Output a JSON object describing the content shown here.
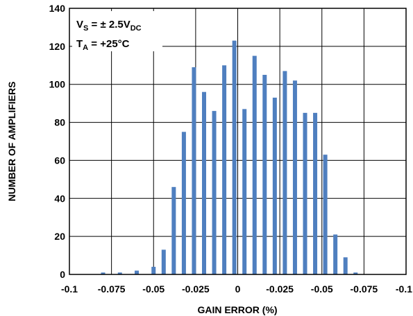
{
  "chart_data": {
    "type": "bar",
    "title": "",
    "xlabel": "GAIN ERROR (%)",
    "ylabel": "NUMBER OF AMPLIFIERS",
    "ylim": [
      0,
      140
    ],
    "yticks": [
      "0",
      "20",
      "40",
      "60",
      "80",
      "100",
      "120",
      "140"
    ],
    "xticks": [
      "-0.1",
      "-0.075",
      "-0.05",
      "-0.025",
      "0",
      "-0.025",
      "-0.05",
      "-0.075",
      "-0.1"
    ],
    "xrange": [
      -0.1,
      0.1
    ],
    "grid": true,
    "annotations": {
      "vs_main": "V",
      "vs_sub": "S",
      "vs_value": " = ± 2.5V",
      "vs_unit_sub": "DC",
      "ta_main": "T",
      "ta_sub": "A",
      "ta_value": " = +25°C"
    },
    "bar_color": "#4f7fbf",
    "bars": [
      {
        "x": -0.08,
        "value": 1
      },
      {
        "x": -0.07,
        "value": 1
      },
      {
        "x": -0.06,
        "value": 2
      },
      {
        "x": -0.05,
        "value": 4
      },
      {
        "x": -0.044,
        "value": 13
      },
      {
        "x": -0.038,
        "value": 46
      },
      {
        "x": -0.032,
        "value": 75
      },
      {
        "x": -0.026,
        "value": 109
      },
      {
        "x": -0.02,
        "value": 96
      },
      {
        "x": -0.014,
        "value": 86
      },
      {
        "x": -0.008,
        "value": 110
      },
      {
        "x": -0.002,
        "value": 123
      },
      {
        "x": 0.004,
        "value": 87
      },
      {
        "x": 0.01,
        "value": 115
      },
      {
        "x": 0.016,
        "value": 105
      },
      {
        "x": 0.022,
        "value": 93
      },
      {
        "x": 0.028,
        "value": 107
      },
      {
        "x": 0.034,
        "value": 102
      },
      {
        "x": 0.04,
        "value": 85
      },
      {
        "x": 0.046,
        "value": 85
      },
      {
        "x": 0.052,
        "value": 63
      },
      {
        "x": 0.058,
        "value": 21
      },
      {
        "x": 0.064,
        "value": 9
      },
      {
        "x": 0.07,
        "value": 1
      }
    ]
  }
}
